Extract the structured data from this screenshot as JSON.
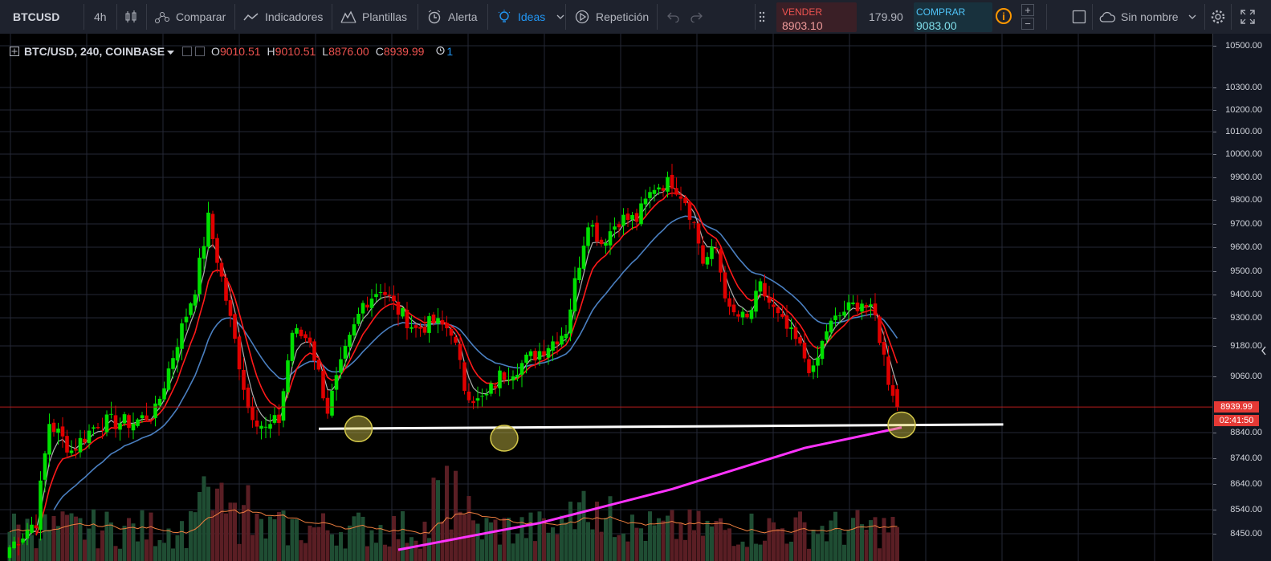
{
  "toolbar": {
    "symbol": "BTCUSD",
    "interval": "4h",
    "compare": "Comparar",
    "indicators": "Indicadores",
    "templates": "Plantillas",
    "alert": "Alerta",
    "ideas": "Ideas",
    "replay": "Repetición",
    "layout_name": "Sin nombre"
  },
  "trade": {
    "sell_label": "VENDER",
    "sell_value": "8903.10",
    "spread": "179.90",
    "buy_label": "COMPRAR",
    "buy_value": "9083.00",
    "info": "i",
    "plus": "+",
    "minus": "−"
  },
  "legend": {
    "title": "BTC/USD, 240, COINBASE",
    "o_key": "O",
    "o_val": "9010.51",
    "h_key": "H",
    "h_val": "9010.51",
    "l_key": "L",
    "l_val": "8876.00",
    "c_key": "C",
    "c_val": "8939.99",
    "alerts_count": "1"
  },
  "price_scale": {
    "last_price": "8939.99",
    "countdown": "02:41:50"
  },
  "colors": {
    "bull": "#00e000",
    "bear": "#e00000",
    "ema_fast": "#b0b0b0",
    "ema_mid": "#ff1a1a",
    "ema_slow": "#4a7fc0",
    "ma_long": "#ff33ff",
    "vol_ma": "#f08040",
    "support": "#ffffff",
    "highlight": "#d4c84a"
  },
  "chart_data": {
    "type": "candlestick",
    "symbol": "BTC/USD",
    "interval": "240",
    "exchange": "COINBASE",
    "y_ticks": [
      10500,
      10300,
      10200,
      10100,
      10000,
      9900,
      9800,
      9700,
      9600,
      9500,
      9400,
      9300,
      9180,
      9060,
      8840,
      8740,
      8640,
      8540,
      8450
    ],
    "ylim": [
      8400,
      10540
    ],
    "last_price": 8939.99,
    "grid": true,
    "anchors": [
      [
        0,
        8400
      ],
      [
        6,
        8500
      ],
      [
        9,
        8880
      ],
      [
        14,
        8770
      ],
      [
        20,
        8880
      ],
      [
        28,
        8880
      ],
      [
        33,
        8920
      ],
      [
        38,
        9200
      ],
      [
        42,
        9430
      ],
      [
        45,
        9720
      ],
      [
        48,
        9470
      ],
      [
        51,
        9200
      ],
      [
        54,
        8940
      ],
      [
        58,
        8850
      ],
      [
        61,
        8890
      ],
      [
        64,
        9240
      ],
      [
        68,
        9210
      ],
      [
        72,
        8930
      ],
      [
        76,
        9150
      ],
      [
        80,
        9360
      ],
      [
        84,
        9430
      ],
      [
        88,
        9330
      ],
      [
        92,
        9250
      ],
      [
        96,
        9280
      ],
      [
        100,
        9250
      ],
      [
        103,
        9020
      ],
      [
        106,
        8960
      ],
      [
        108,
        8980
      ],
      [
        111,
        9060
      ],
      [
        116,
        9110
      ],
      [
        120,
        9160
      ],
      [
        123,
        9200
      ],
      [
        126,
        9250
      ],
      [
        128,
        9450
      ],
      [
        131,
        9720
      ],
      [
        134,
        9620
      ],
      [
        138,
        9720
      ],
      [
        142,
        9720
      ],
      [
        146,
        9860
      ],
      [
        150,
        9880
      ],
      [
        153,
        9800
      ],
      [
        155,
        9700
      ],
      [
        157,
        9540
      ],
      [
        160,
        9590
      ],
      [
        163,
        9320
      ],
      [
        167,
        9290
      ],
      [
        170,
        9430
      ],
      [
        174,
        9300
      ],
      [
        178,
        9200
      ],
      [
        182,
        9070
      ],
      [
        185,
        9250
      ],
      [
        189,
        9330
      ],
      [
        193,
        9370
      ],
      [
        196,
        9300
      ],
      [
        199,
        9050
      ],
      [
        201,
        8960
      ]
    ],
    "support_line": {
      "from": [
        70,
        8855
      ],
      "to": [
        225,
        8872
      ]
    },
    "highlight_points": [
      [
        79,
        8855
      ],
      [
        112,
        8818
      ],
      [
        202,
        8870
      ]
    ],
    "ma_long_points": [
      [
        88,
        8390
      ],
      [
        120,
        8490
      ],
      [
        150,
        8620
      ],
      [
        180,
        8780
      ],
      [
        202,
        8860
      ]
    ]
  }
}
